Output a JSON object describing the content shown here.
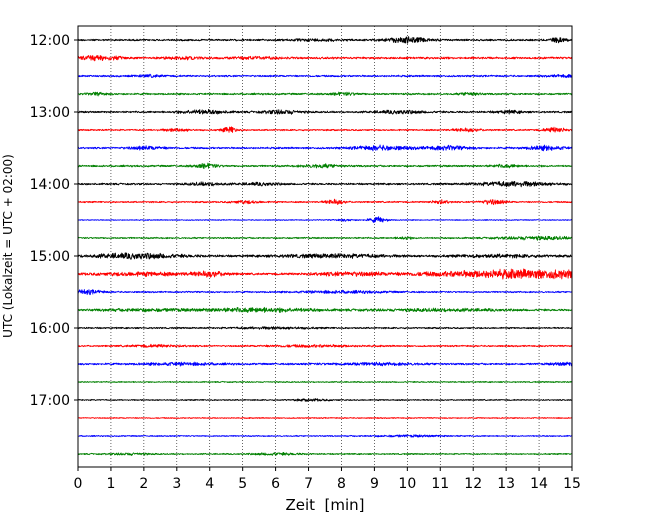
{
  "chart_data": {
    "type": "line",
    "title": "",
    "xlabel": "Zeit  [min]",
    "ylabel": "UTC (Lokalzeit = UTC + 02:00)",
    "xlim": [
      0,
      15
    ],
    "x_ticks": [
      "0",
      "1",
      "2",
      "3",
      "4",
      "5",
      "6",
      "7",
      "8",
      "9",
      "10",
      "11",
      "12",
      "13",
      "14",
      "15"
    ],
    "y_ticks": [
      "12:00",
      "13:00",
      "14:00",
      "15:00",
      "16:00",
      "17:00"
    ],
    "grid": "vertical-dotted",
    "rows_per_hour": 4,
    "color_cycle": [
      "#000000",
      "#ff0000",
      "#0000ff",
      "#008000"
    ],
    "series": [
      {
        "start": "12:00",
        "color": "#000000",
        "base": 0.3,
        "events": [
          [
            10.0,
            0.9,
            0.45
          ],
          [
            14.6,
            0.7,
            0.2
          ],
          [
            7.3,
            0.3,
            0.6
          ]
        ]
      },
      {
        "start": "12:15",
        "color": "#ff0000",
        "base": 0.35,
        "events": [
          [
            0.6,
            0.8,
            0.45
          ],
          [
            3.2,
            0.35,
            0.4
          ],
          [
            5.4,
            0.3,
            0.5
          ]
        ]
      },
      {
        "start": "12:30",
        "color": "#0000ff",
        "base": 0.3,
        "events": [
          [
            2.2,
            0.3,
            0.3
          ],
          [
            14.8,
            0.35,
            0.3
          ]
        ]
      },
      {
        "start": "12:45",
        "color": "#008000",
        "base": 0.3,
        "events": [
          [
            0.6,
            0.4,
            0.2
          ],
          [
            8.1,
            0.4,
            0.3
          ],
          [
            11.9,
            0.5,
            0.2
          ]
        ]
      },
      {
        "start": "13:00",
        "color": "#000000",
        "base": 0.3,
        "events": [
          [
            3.8,
            0.6,
            0.5
          ],
          [
            6.2,
            0.6,
            0.4
          ],
          [
            9.8,
            0.5,
            0.5
          ],
          [
            13.1,
            0.4,
            0.3
          ]
        ]
      },
      {
        "start": "13:15",
        "color": "#ff0000",
        "base": 0.25,
        "events": [
          [
            4.6,
            1.1,
            0.15
          ],
          [
            3.0,
            0.45,
            0.3
          ],
          [
            11.8,
            0.5,
            0.3
          ],
          [
            14.5,
            0.8,
            0.25
          ]
        ]
      },
      {
        "start": "13:30",
        "color": "#0000ff",
        "base": 0.3,
        "events": [
          [
            9.2,
            0.7,
            0.6
          ],
          [
            11.2,
            0.6,
            0.5
          ],
          [
            14.2,
            0.7,
            0.4
          ],
          [
            2.1,
            0.5,
            0.4
          ]
        ]
      },
      {
        "start": "13:45",
        "color": "#008000",
        "base": 0.3,
        "events": [
          [
            3.9,
            0.7,
            0.25
          ],
          [
            7.4,
            0.5,
            0.4
          ],
          [
            13.0,
            0.4,
            0.3
          ]
        ]
      },
      {
        "start": "14:00",
        "color": "#000000",
        "base": 0.3,
        "events": [
          [
            13.3,
            0.75,
            0.8
          ],
          [
            3.9,
            0.45,
            0.4
          ],
          [
            5.6,
            0.4,
            0.4
          ]
        ]
      },
      {
        "start": "14:15",
        "color": "#ff0000",
        "base": 0.25,
        "events": [
          [
            7.8,
            0.8,
            0.2
          ],
          [
            12.6,
            0.8,
            0.25
          ],
          [
            5.1,
            0.45,
            0.3
          ],
          [
            11.0,
            0.6,
            0.2
          ]
        ]
      },
      {
        "start": "14:30",
        "color": "#0000ff",
        "base": 0.15,
        "events": [
          [
            9.1,
            0.9,
            0.2
          ],
          [
            8.1,
            0.3,
            0.2
          ]
        ]
      },
      {
        "start": "14:45",
        "color": "#008000",
        "base": 0.25,
        "events": [
          [
            14.0,
            0.5,
            0.8
          ],
          [
            9.9,
            0.45,
            0.15
          ]
        ]
      },
      {
        "start": "15:00",
        "color": "#000000",
        "base": 0.35,
        "events": [
          [
            1.8,
            0.85,
            0.9
          ],
          [
            7.8,
            0.5,
            1.2
          ],
          [
            12.8,
            0.35,
            1.0
          ]
        ]
      },
      {
        "start": "15:15",
        "color": "#ff0000",
        "base": 0.35,
        "events": [
          [
            13.9,
            1.4,
            2.2
          ],
          [
            4.0,
            0.8,
            0.35
          ],
          [
            2.0,
            0.5,
            1.0
          ],
          [
            8.2,
            0.5,
            0.8
          ]
        ]
      },
      {
        "start": "15:30",
        "color": "#0000ff",
        "base": 0.25,
        "events": [
          [
            0.25,
            0.7,
            0.35
          ],
          [
            8.0,
            0.35,
            1.0
          ]
        ]
      },
      {
        "start": "15:45",
        "color": "#008000",
        "base": 0.3,
        "events": [
          [
            5.5,
            0.65,
            1.2
          ],
          [
            2.0,
            0.35,
            1.0
          ],
          [
            11.0,
            0.35,
            1.5
          ]
        ]
      },
      {
        "start": "16:00",
        "color": "#000000",
        "base": 0.25,
        "events": [
          [
            6.0,
            0.3,
            0.8
          ]
        ]
      },
      {
        "start": "16:15",
        "color": "#ff0000",
        "base": 0.25,
        "events": [
          [
            2.4,
            0.35,
            0.6
          ],
          [
            7.1,
            0.3,
            1.0
          ]
        ]
      },
      {
        "start": "16:30",
        "color": "#0000ff",
        "base": 0.3,
        "events": [
          [
            3.1,
            0.4,
            0.8
          ],
          [
            14.8,
            0.45,
            0.3
          ],
          [
            9.0,
            0.35,
            1.0
          ]
        ]
      },
      {
        "start": "16:45",
        "color": "#008000",
        "base": 0.2,
        "events": []
      },
      {
        "start": "17:00",
        "color": "#000000",
        "base": 0.2,
        "events": [
          [
            7.1,
            0.3,
            0.4
          ]
        ]
      },
      {
        "start": "17:15",
        "color": "#ff0000",
        "base": 0.18,
        "events": []
      },
      {
        "start": "17:30",
        "color": "#0000ff",
        "base": 0.2,
        "events": [
          [
            10.1,
            0.25,
            0.8
          ]
        ]
      },
      {
        "start": "17:45",
        "color": "#008000",
        "base": 0.22,
        "events": [
          [
            6.0,
            0.35,
            0.5
          ],
          [
            1.6,
            0.3,
            0.4
          ]
        ]
      }
    ]
  }
}
